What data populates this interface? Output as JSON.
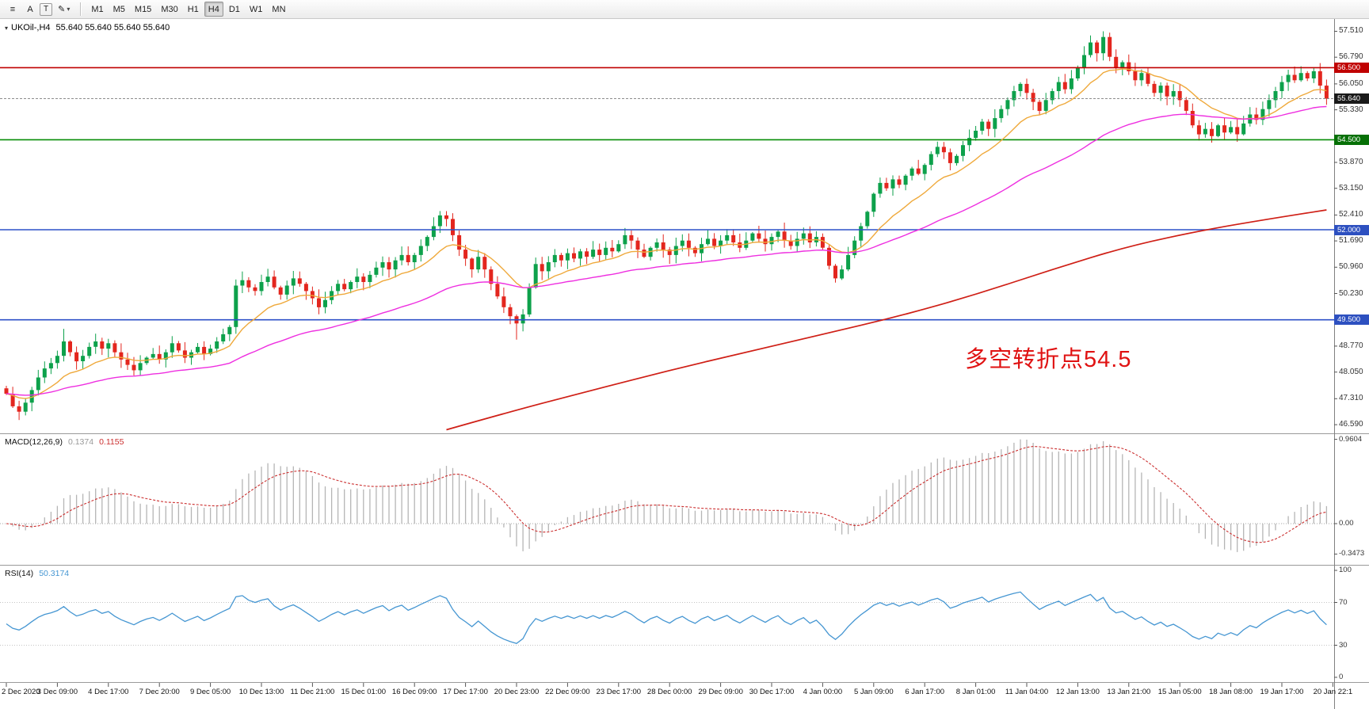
{
  "toolbar": {
    "icons": [
      {
        "name": "chart-list-icon",
        "glyph": "≡"
      },
      {
        "name": "letter-a-icon",
        "glyph": "A"
      },
      {
        "name": "text-box-icon",
        "glyph": "T",
        "boxed": true
      },
      {
        "name": "draw-tool-icon",
        "glyph": "✎",
        "caret": "▾"
      }
    ],
    "timeframes": [
      "M1",
      "M5",
      "M15",
      "M30",
      "H1",
      "H4",
      "D1",
      "W1",
      "MN"
    ],
    "active_timeframe": "H4"
  },
  "chart": {
    "title": {
      "dropdown": "▾",
      "symbol": "UKOil-,H4",
      "ohlc": "55.640 55.640 55.640 55.640"
    },
    "annotation": {
      "text": "多空转折点54.5",
      "color": "#e01212"
    },
    "price_axis": {
      "ticks": [
        "57.510",
        "56.790",
        "56.050",
        "55.330",
        "53.870",
        "53.150",
        "52.410",
        "51.690",
        "50.960",
        "50.230",
        "48.770",
        "48.050",
        "47.310",
        "46.590"
      ],
      "badges": [
        {
          "text": "56.500",
          "bg": "#c00000"
        },
        {
          "text": "55.640",
          "bg": "#1a1a1a"
        },
        {
          "text": "54.500",
          "bg": "#067006"
        },
        {
          "text": "52.000",
          "bg": "#2d50c0"
        },
        {
          "text": "49.500",
          "bg": "#2d50c0"
        }
      ]
    },
    "levels": [
      {
        "price": 56.5,
        "color": "#c00000"
      },
      {
        "price": 54.5,
        "color": "#068c06"
      },
      {
        "price": 52.0,
        "color": "#2d50c8"
      },
      {
        "price": 49.5,
        "color": "#2d50c8"
      }
    ],
    "current_price": 55.64,
    "time_axis": {
      "labels": [
        "2 Dec 2020",
        "3 Dec 09:00",
        "4 Dec 17:00",
        "7 Dec 20:00",
        "9 Dec 05:00",
        "10 Dec 13:00",
        "11 Dec 21:00",
        "15 Dec 01:00",
        "16 Dec 09:00",
        "17 Dec 17:00",
        "20 Dec 23:00",
        "22 Dec 09:00",
        "23 Dec 17:00",
        "28 Dec 00:00",
        "29 Dec 09:00",
        "30 Dec 17:00",
        "4 Jan 00:00",
        "5 Jan 09:00",
        "6 Jan 17:00",
        "8 Jan 01:00",
        "11 Jan 04:00",
        "12 Jan 13:00",
        "13 Jan 21:00",
        "15 Jan 05:00",
        "18 Jan 08:00",
        "19 Jan 17:00",
        "20 Jan 22:1"
      ]
    },
    "colors": {
      "up": "#0da14b",
      "down": "#e3261e",
      "ma_fast": "#efa93b",
      "ma_mid": "#ee2fe0",
      "ma_long": "#cf1f16",
      "macd_hist": "#b5b5b5",
      "macd_signal": "#cb2f2f",
      "rsi": "#4596d2",
      "current_line": "#8c8c8c",
      "axis_line": "#808080",
      "separator": "#9a9a9a"
    }
  },
  "chart_data": {
    "type": "candlestick",
    "symbol": "UKOil-",
    "timeframe": "H4",
    "last_price": 55.64,
    "price_range": [
      46.35,
      57.85
    ],
    "first_open": 47.6,
    "closes": [
      47.45,
      47.1,
      46.95,
      47.2,
      47.55,
      47.9,
      48.15,
      48.3,
      48.5,
      48.9,
      48.6,
      48.35,
      48.5,
      48.75,
      48.9,
      48.7,
      48.85,
      48.6,
      48.4,
      48.25,
      48.1,
      48.3,
      48.45,
      48.55,
      48.4,
      48.6,
      48.85,
      48.65,
      48.45,
      48.6,
      48.75,
      48.55,
      48.7,
      48.9,
      49.1,
      49.3,
      50.45,
      50.6,
      50.4,
      50.3,
      50.55,
      50.7,
      50.4,
      50.2,
      50.45,
      50.65,
      50.5,
      50.3,
      50.1,
      49.85,
      50.05,
      50.3,
      50.5,
      50.35,
      50.55,
      50.7,
      50.55,
      50.75,
      50.95,
      51.1,
      50.9,
      51.15,
      51.3,
      51.1,
      51.3,
      51.55,
      51.8,
      52.1,
      52.4,
      52.3,
      51.85,
      51.45,
      51.2,
      50.9,
      51.25,
      50.9,
      50.5,
      50.15,
      49.85,
      49.6,
      49.4,
      49.65,
      50.4,
      51.05,
      50.85,
      51.1,
      51.3,
      51.15,
      51.35,
      51.2,
      51.4,
      51.25,
      51.45,
      51.3,
      51.5,
      51.4,
      51.6,
      51.85,
      51.7,
      51.45,
      51.25,
      51.5,
      51.65,
      51.45,
      51.3,
      51.55,
      51.7,
      51.5,
      51.35,
      51.6,
      51.75,
      51.55,
      51.7,
      51.85,
      51.65,
      51.5,
      51.7,
      51.9,
      51.75,
      51.6,
      51.8,
      51.95,
      51.7,
      51.55,
      51.75,
      51.9,
      51.65,
      51.8,
      51.5,
      51.0,
      50.65,
      50.9,
      51.3,
      51.7,
      52.1,
      52.5,
      53.0,
      53.3,
      53.15,
      53.4,
      53.25,
      53.5,
      53.7,
      53.55,
      53.8,
      54.1,
      54.3,
      54.15,
      53.85,
      54.05,
      54.35,
      54.55,
      54.75,
      55.0,
      54.8,
      55.1,
      55.35,
      55.6,
      55.85,
      56.05,
      55.8,
      55.55,
      55.3,
      55.6,
      55.85,
      56.1,
      55.9,
      56.2,
      56.5,
      56.85,
      57.2,
      56.9,
      57.35,
      56.8,
      56.5,
      56.65,
      56.4,
      56.15,
      56.35,
      56.05,
      55.8,
      56.0,
      55.7,
      55.85,
      55.6,
      55.3,
      54.9,
      54.65,
      54.8,
      54.6,
      54.9,
      54.7,
      54.85,
      54.65,
      54.95,
      55.2,
      55.05,
      55.35,
      55.6,
      55.85,
      56.1,
      56.3,
      56.15,
      56.35,
      56.2,
      56.4,
      56.0,
      55.64
    ],
    "wick_overrides": {
      "2": {
        "low": 46.72
      },
      "9": {
        "high": 49.25
      },
      "68": {
        "high": 52.52
      },
      "80": {
        "low": 48.95
      },
      "97": {
        "high": 52.05
      },
      "172": {
        "high": 57.51
      }
    },
    "red_ma_points": [
      [
        69,
        46.45
      ],
      [
        80,
        47.0
      ],
      [
        92,
        47.55
      ],
      [
        104,
        48.1
      ],
      [
        116,
        48.6
      ],
      [
        128,
        49.1
      ],
      [
        140,
        49.6
      ],
      [
        152,
        50.2
      ],
      [
        164,
        50.9
      ],
      [
        176,
        51.55
      ],
      [
        188,
        52.0
      ],
      [
        198,
        52.3
      ],
      [
        207,
        52.55
      ]
    ],
    "indicators": {
      "macd": {
        "name": "MACD(12,26,9)",
        "value1": "0.1374",
        "value2": "0.1155",
        "axis": [
          "0.9604",
          "0.00",
          "-0.3473"
        ]
      },
      "rsi": {
        "name": "RSI(14)",
        "value": "50.3174",
        "axis": [
          "100",
          "70",
          "30",
          "0"
        ],
        "levels": [
          70,
          30
        ]
      }
    }
  }
}
